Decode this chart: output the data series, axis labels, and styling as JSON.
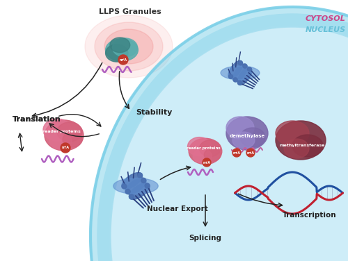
{
  "bg_color": "#ffffff",
  "nucleus_fill": "#ceedf8",
  "nucleus_border_outer": "#7dd0e8",
  "nucleus_border_inner": "#a8dff0",
  "cytosol_label": "CYTOSOL",
  "cytosol_label_color": "#cc4488",
  "nucleus_label": "NUCLEUS",
  "nucleus_label_color": "#66c0d8",
  "labels": {
    "llps_granules": "LLPS Granules",
    "translation": "Translation",
    "stability": "Stability",
    "nuclear_export": "Nuclear Export",
    "splicing": "Splicing",
    "transcription": "Transcription",
    "demethylase": "demethylase",
    "methyltransferase": "methyltransferase",
    "reader_proteins": "reader proteins",
    "m6a": "m⁶A"
  },
  "llps_glow_color": "#f08080",
  "arrow_color": "#222222",
  "m6a_color": "#c0392b",
  "reader_protein_pink": "#d4607a",
  "reader_protein_light": "#e07090",
  "demethylase_color": "#7b68aa",
  "demethylase_light": "#9988cc",
  "methyltransferase_color": "#7b2d3e",
  "methyltransferase_light": "#a04050",
  "rna_wave_color": "#c060a0",
  "dna_blue": "#2050a0",
  "dna_red": "#c02030",
  "pore_blue": "#4a70b0",
  "pore_dark": "#2a4080",
  "pore_light": "#6090d0",
  "teal_color": "#5aadad",
  "teal_dark": "#3a8080"
}
